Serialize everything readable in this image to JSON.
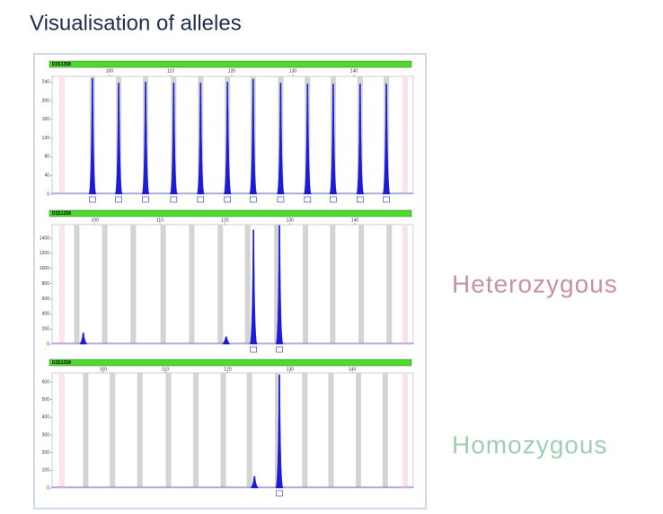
{
  "title": "Visualisation of alleles",
  "labels": [
    "Heterozygous",
    "Homozygous"
  ],
  "chart_data": [
    {
      "type": "peaks",
      "title": "D3S1358",
      "color": "#1b1bd8",
      "xlim": [
        90.6,
        149.7
      ],
      "xticks": [
        100,
        110,
        120,
        130,
        140
      ],
      "ylim": [
        0,
        252
      ],
      "yticks": [
        0,
        40,
        80,
        120,
        160,
        200,
        240
      ],
      "x": [
        97.2,
        101.5,
        105.9,
        110.5,
        114.9,
        119.3,
        123.5,
        128,
        132.4,
        136.6,
        141,
        145.3
      ],
      "values": [
        248,
        238,
        240,
        238,
        238,
        240,
        246,
        238,
        236,
        236,
        236,
        236
      ]
    },
    {
      "type": "peaks",
      "title": "D3S1358",
      "color": "#1b1bd8",
      "xlim": [
        93.4,
        149
      ],
      "xticks": [
        100,
        110,
        120,
        130,
        140
      ],
      "ylim": [
        0,
        1578
      ],
      "yticks": [
        0,
        200,
        400,
        600,
        800,
        1000,
        1200,
        1400
      ],
      "x": [
        98.2,
        120.2,
        124.4,
        128.4
      ],
      "values": [
        150,
        100,
        1510,
        1570
      ]
    },
    {
      "type": "peaks",
      "title": "D3S1358",
      "color": "#1b1bd8",
      "xlim": [
        91.8,
        149.8
      ],
      "xticks": [
        100,
        110,
        120,
        130,
        140
      ],
      "ylim": [
        0,
        651
      ],
      "yticks": [
        0,
        100,
        200,
        300,
        400,
        500,
        600
      ],
      "x": [
        124.3,
        128.3
      ],
      "values": [
        66,
        640
      ]
    }
  ]
}
